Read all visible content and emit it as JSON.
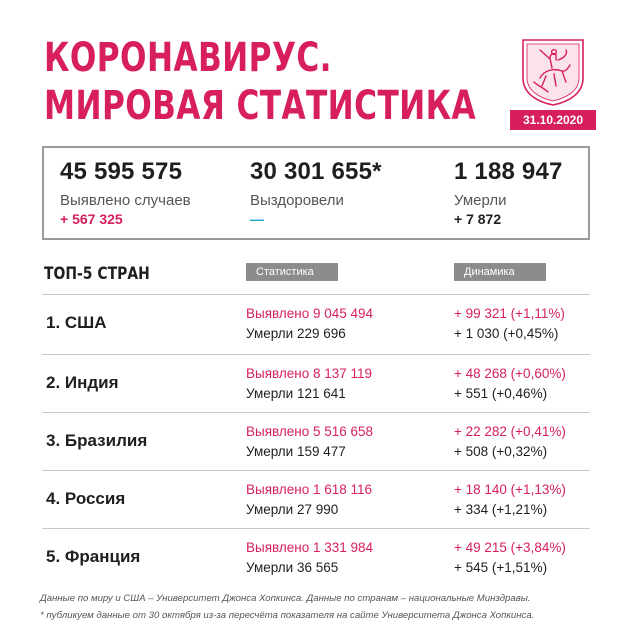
{
  "header": {
    "title_line1": "КОРОНАВИРУС.",
    "title_line2": "МИРОВАЯ СТАТИСТИКА",
    "date": "31.10.2020"
  },
  "colors": {
    "accent": "#d81f5d",
    "teal": "#1aa3c9",
    "badge_grey": "#8c8c8c",
    "text": "#1f1f1f"
  },
  "world": [
    {
      "value": "45 595 575",
      "label": "Выявлено случаев",
      "delta": "+ 567 325"
    },
    {
      "value": "30 301 655*",
      "label": "Выздоровели",
      "delta": "—"
    },
    {
      "value": "1 188 947",
      "label": "Умерли",
      "delta": "+ 7 872"
    }
  ],
  "top5": {
    "title": "ТОП-5 СТРАН",
    "col_stat": "Статистика",
    "col_dyn": "Динамика",
    "rows": [
      {
        "country": "1. США",
        "cases": "Выявлено 9 045 494",
        "deaths": "Умерли 229 696",
        "dcases": "+ 99 321 (+1,11%)",
        "ddeaths": "+ 1 030 (+0,45%)"
      },
      {
        "country": "2. Индия",
        "cases": "Выявлено 8 137 119",
        "deaths": "Умерли 121 641",
        "dcases": "+ 48 268 (+0,60%)",
        "ddeaths": "+ 551 (+0,46%)"
      },
      {
        "country": "3. Бразилия",
        "cases": "Выявлено 5 516 658",
        "deaths": "Умерли 159 477",
        "dcases": "+ 22 282 (+0,41%)",
        "ddeaths": "+ 508 (+0,32%)"
      },
      {
        "country": "4. Россия",
        "cases": "Выявлено 1 618 116",
        "deaths": "Умерли 27 990",
        "dcases": "+ 18 140 (+1,13%)",
        "ddeaths": "+ 334 (+1,21%)"
      },
      {
        "country": "5. Франция",
        "cases": "Выявлено 1 331 984",
        "deaths": "Умерли 36 565",
        "dcases": "+ 49 215 (+3,84%)",
        "ddeaths": "+ 545 (+1,51%)"
      }
    ]
  },
  "footnotes": {
    "line1": "Данные по миру и США – Университет Джонса Хопкинса. Данные по странам – национальные Минздравы.",
    "line2": "* публикуем данные от 30 октября из-за пересчёта показателя на сайте Университета Джонса Хопкинса."
  },
  "icons": {
    "emblem": "moscow-coat-of-arms-icon"
  }
}
